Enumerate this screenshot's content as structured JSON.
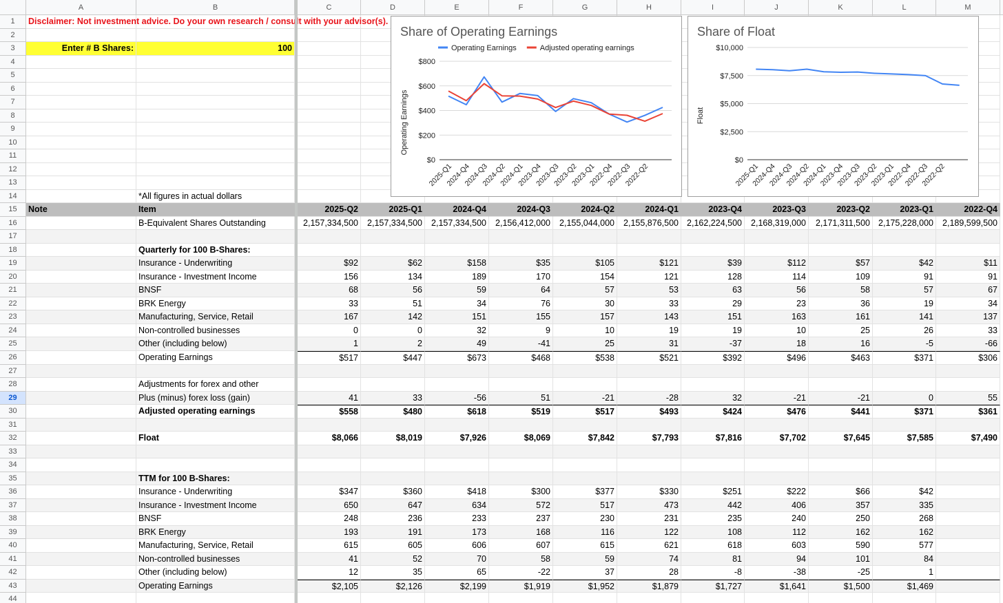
{
  "sheet": {
    "columns": [
      "A",
      "B",
      "C",
      "D",
      "E",
      "F",
      "G",
      "H",
      "I",
      "J",
      "K",
      "L",
      "M"
    ],
    "rows": [
      {
        "number": 1,
        "note": "Disclaimer: Not investment advice. Do your own research / consult with your advisor(s).",
        "style": "disclaimer"
      },
      {
        "number": 2
      },
      {
        "number": 3,
        "note": "Enter # B Shares:",
        "label": "100",
        "style": "input"
      },
      {
        "number": 4
      },
      {
        "number": 5
      },
      {
        "number": 6
      },
      {
        "number": 7
      },
      {
        "number": 8
      },
      {
        "number": 9
      },
      {
        "number": 10
      },
      {
        "number": 11
      },
      {
        "number": 12
      },
      {
        "number": 13
      },
      {
        "number": 14,
        "label": "*All figures in actual dollars"
      },
      {
        "number": 15,
        "note": "Note",
        "label": "Item",
        "style": "header",
        "values": [
          "2025-Q2",
          "2025-Q1",
          "2024-Q4",
          "2024-Q3",
          "2024-Q2",
          "2024-Q1",
          "2023-Q4",
          "2023-Q3",
          "2023-Q2",
          "2023-Q1",
          "2022-Q4"
        ]
      },
      {
        "number": 16,
        "label": "B-Equivalent Shares Outstanding",
        "values": [
          "2,157,334,500",
          "2,157,334,500",
          "2,157,334,500",
          "2,156,412,000",
          "2,155,044,000",
          "2,155,876,500",
          "2,162,224,500",
          "2,168,319,000",
          "2,171,311,500",
          "2,175,228,000",
          "2,189,599,500"
        ]
      },
      {
        "number": 17
      },
      {
        "number": 18,
        "label": "Quarterly for 100 B-Shares:",
        "style": "bold"
      },
      {
        "number": 19,
        "label": "Insurance - Underwriting",
        "values": [
          "$92",
          "$62",
          "$158",
          "$35",
          "$105",
          "$121",
          "$39",
          "$112",
          "$57",
          "$42",
          "$11"
        ]
      },
      {
        "number": 20,
        "label": "Insurance - Investment Income",
        "values": [
          "156",
          "134",
          "189",
          "170",
          "154",
          "121",
          "128",
          "114",
          "109",
          "91",
          "91"
        ]
      },
      {
        "number": 21,
        "label": "BNSF",
        "values": [
          "68",
          "56",
          "59",
          "64",
          "57",
          "53",
          "63",
          "56",
          "58",
          "57",
          "67"
        ]
      },
      {
        "number": 22,
        "label": "BRK Energy",
        "values": [
          "33",
          "51",
          "34",
          "76",
          "30",
          "33",
          "29",
          "23",
          "36",
          "19",
          "34"
        ]
      },
      {
        "number": 23,
        "label": "Manufacturing, Service, Retail",
        "values": [
          "167",
          "142",
          "151",
          "155",
          "157",
          "143",
          "151",
          "163",
          "161",
          "141",
          "137"
        ]
      },
      {
        "number": 24,
        "label": "Non-controlled businesses",
        "values": [
          "0",
          "0",
          "32",
          "9",
          "10",
          "19",
          "19",
          "10",
          "25",
          "26",
          "33"
        ]
      },
      {
        "number": 25,
        "label": "Other (including below)",
        "values": [
          "1",
          "2",
          "49",
          "-41",
          "25",
          "31",
          "-37",
          "18",
          "16",
          "-5",
          "-66"
        ]
      },
      {
        "number": 26,
        "label": "Operating Earnings",
        "style": "total",
        "values": [
          "$517",
          "$447",
          "$673",
          "$468",
          "$538",
          "$521",
          "$392",
          "$496",
          "$463",
          "$371",
          "$306"
        ]
      },
      {
        "number": 27
      },
      {
        "number": 28,
        "label": "Adjustments for forex and other"
      },
      {
        "number": 29,
        "label": "Plus (minus) forex loss (gain)",
        "selected": true,
        "values": [
          "41",
          "33",
          "-56",
          "51",
          "-21",
          "-28",
          "32",
          "-21",
          "-21",
          "0",
          "55"
        ]
      },
      {
        "number": 30,
        "label": "Adjusted operating earnings",
        "style": "bold-total",
        "values": [
          "$558",
          "$480",
          "$618",
          "$519",
          "$517",
          "$493",
          "$424",
          "$476",
          "$441",
          "$371",
          "$361"
        ]
      },
      {
        "number": 31
      },
      {
        "number": 32,
        "label": "Float",
        "style": "bold",
        "values": [
          "$8,066",
          "$8,019",
          "$7,926",
          "$8,069",
          "$7,842",
          "$7,793",
          "$7,816",
          "$7,702",
          "$7,645",
          "$7,585",
          "$7,490"
        ]
      },
      {
        "number": 33
      },
      {
        "number": 34
      },
      {
        "number": 35,
        "label": "TTM for 100 B-Shares:",
        "style": "bold"
      },
      {
        "number": 36,
        "label": "Insurance - Underwriting",
        "values": [
          "$347",
          "$360",
          "$418",
          "$300",
          "$377",
          "$330",
          "$251",
          "$222",
          "$66",
          "$42"
        ]
      },
      {
        "number": 37,
        "label": "Insurance - Investment Income",
        "values": [
          "650",
          "647",
          "634",
          "572",
          "517",
          "473",
          "442",
          "406",
          "357",
          "335"
        ]
      },
      {
        "number": 38,
        "label": "BNSF",
        "values": [
          "248",
          "236",
          "233",
          "237",
          "230",
          "231",
          "235",
          "240",
          "250",
          "268"
        ]
      },
      {
        "number": 39,
        "label": "BRK Energy",
        "values": [
          "193",
          "191",
          "173",
          "168",
          "116",
          "122",
          "108",
          "112",
          "162",
          "162"
        ]
      },
      {
        "number": 40,
        "label": "Manufacturing, Service, Retail",
        "values": [
          "615",
          "605",
          "606",
          "607",
          "615",
          "621",
          "618",
          "603",
          "590",
          "577"
        ]
      },
      {
        "number": 41,
        "label": "Non-controlled businesses",
        "values": [
          "41",
          "52",
          "70",
          "58",
          "59",
          "74",
          "81",
          "94",
          "101",
          "84"
        ]
      },
      {
        "number": 42,
        "label": "Other (including below)",
        "values": [
          "12",
          "35",
          "65",
          "-22",
          "37",
          "28",
          "-8",
          "-38",
          "-25",
          "1"
        ]
      },
      {
        "number": 43,
        "label": "Operating Earnings",
        "style": "total",
        "values": [
          "$2,105",
          "$2,126",
          "$2,199",
          "$1,919",
          "$1,952",
          "$1,879",
          "$1,727",
          "$1,641",
          "$1,500",
          "$1,469"
        ]
      },
      {
        "number": 44
      }
    ]
  },
  "chart_data": [
    {
      "type": "line",
      "title": "Share of Operating Earnings",
      "y_label": "Operating Earnings",
      "categories": [
        null,
        "2025-Q1",
        "2024-Q4",
        "2024-Q3",
        "2024-Q2",
        "2024-Q1",
        "2023-Q4",
        "2023-Q3",
        "2023-Q2",
        "2023-Q1",
        "2022-Q4",
        "2022-Q3",
        "2022-Q2"
      ],
      "series": [
        {
          "name": "Operating Earnings",
          "color": "#4285f4",
          "values": [
            517,
            447,
            673,
            468,
            538,
            521,
            392,
            496,
            463,
            371,
            306,
            360,
            425
          ]
        },
        {
          "name": "Adjusted operating earnings",
          "color": "#ea4335",
          "values": [
            558,
            480,
            618,
            519,
            517,
            493,
            424,
            476,
            441,
            371,
            361,
            313,
            375
          ]
        }
      ],
      "ylim": [
        0,
        800
      ],
      "yticks": [
        {
          "value": 0,
          "label": "$0"
        },
        {
          "value": 200,
          "label": "$200"
        },
        {
          "value": 400,
          "label": "$400"
        },
        {
          "value": 600,
          "label": "$600"
        },
        {
          "value": 800,
          "label": "$800"
        }
      ],
      "grid": true,
      "legend": "top"
    },
    {
      "type": "line",
      "title": "Share of Float",
      "y_label": "Float",
      "categories": [
        null,
        "2025-Q1",
        "2024-Q4",
        "2024-Q3",
        "2024-Q2",
        "2024-Q1",
        "2023-Q4",
        "2023-Q3",
        "2023-Q2",
        "2023-Q1",
        "2022-Q4",
        "2022-Q3",
        "2022-Q2"
      ],
      "series": [
        {
          "color": "#4285f4",
          "values": [
            8066,
            8019,
            7926,
            8069,
            7842,
            7793,
            7816,
            7702,
            7645,
            7585,
            7490,
            6750,
            6630
          ]
        }
      ],
      "ylim": [
        0,
        10000
      ],
      "yticks": [
        {
          "value": 0,
          "label": "$0"
        },
        {
          "value": 2500,
          "label": "$2,500"
        },
        {
          "value": 5000,
          "label": "$5,000"
        },
        {
          "value": 7500,
          "label": "$7,500"
        },
        {
          "value": 10000,
          "label": "$10,000"
        }
      ],
      "grid": true
    }
  ]
}
